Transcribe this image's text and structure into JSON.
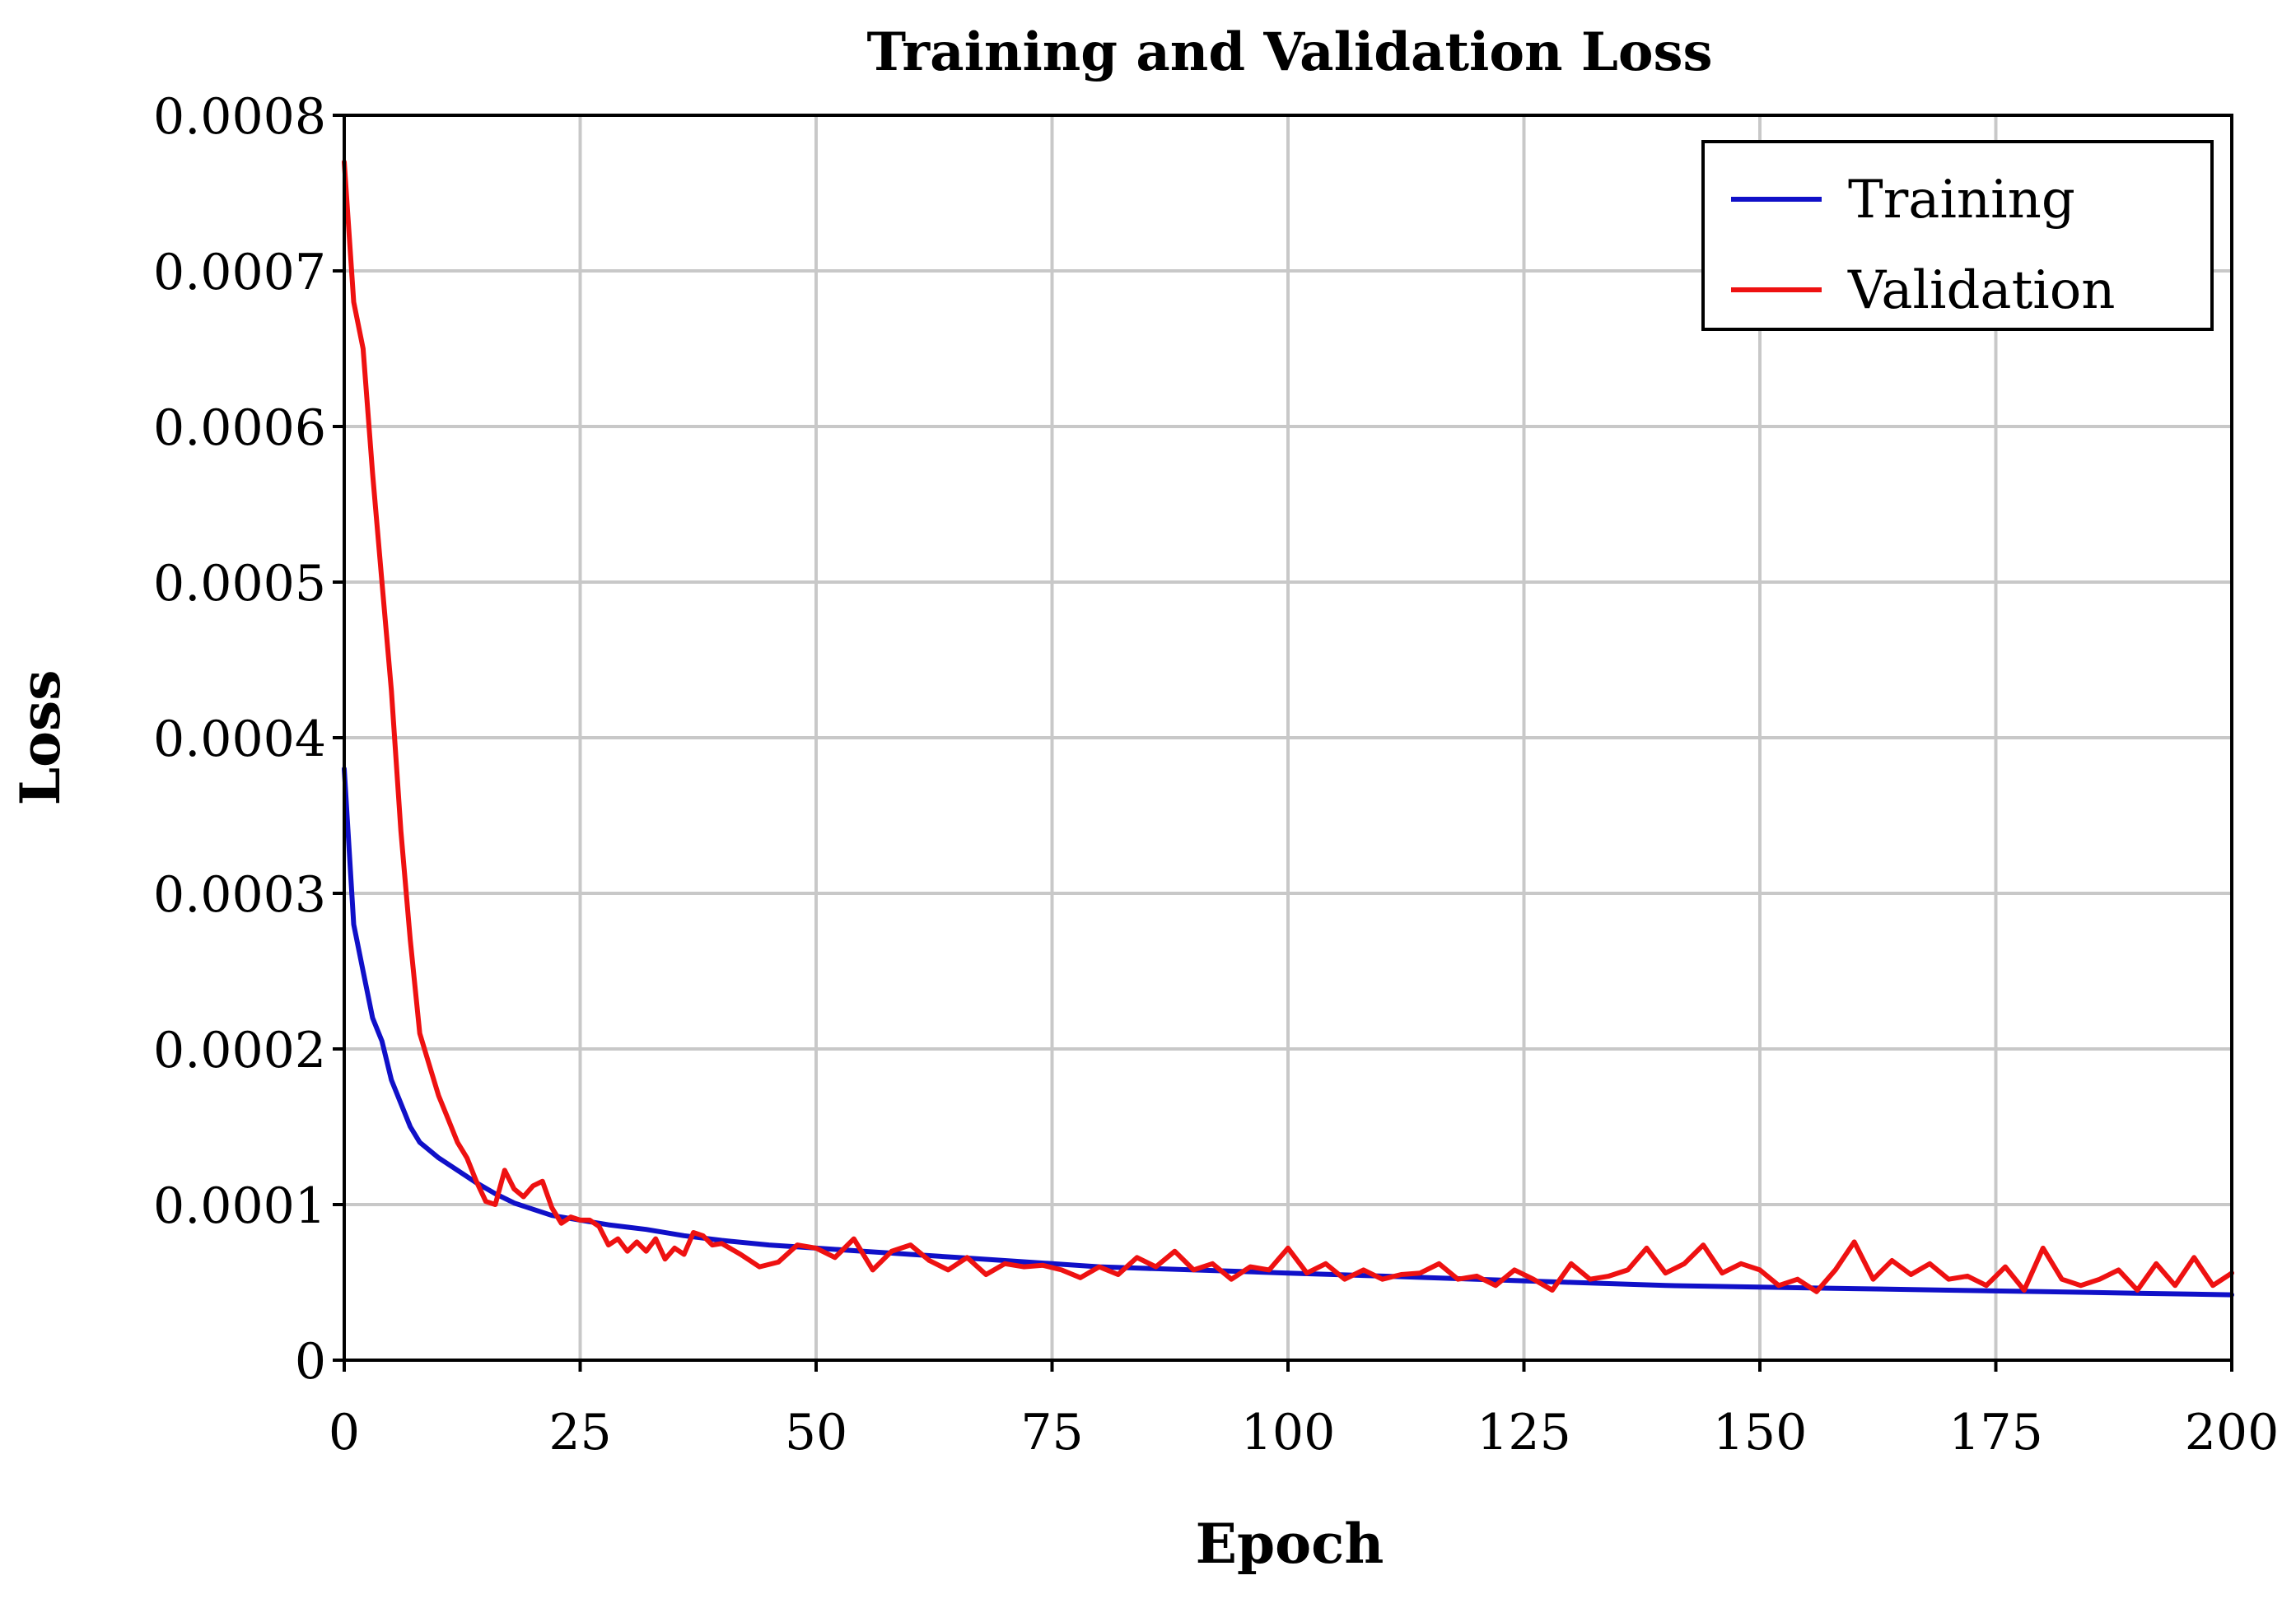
{
  "chart_data": {
    "type": "line",
    "title": "Training and Validation Loss",
    "xlabel": "Epoch",
    "ylabel": "Loss",
    "xlim": [
      0,
      200
    ],
    "ylim": [
      0,
      0.0008
    ],
    "xticks": [
      0,
      25,
      50,
      75,
      100,
      125,
      150,
      175,
      200
    ],
    "xtick_labels": [
      "0",
      "25",
      "50",
      "75",
      "100",
      "125",
      "150",
      "175",
      "200"
    ],
    "yticks": [
      0,
      0.0001,
      0.0002,
      0.0003,
      0.0004,
      0.0005,
      0.0006,
      0.0007,
      0.0008
    ],
    "ytick_labels": [
      "0",
      "0.0001",
      "0.0002",
      "0.0003",
      "0.0004",
      "0.0005",
      "0.0006",
      "0.0007",
      "0.0008"
    ],
    "grid": true,
    "legend_position": "top-right",
    "series": [
      {
        "name": "Training",
        "color": "#1010c8",
        "x": [
          0,
          1,
          2,
          3,
          4,
          5,
          6,
          7,
          8,
          9,
          10,
          12,
          14,
          16,
          18,
          20,
          22,
          25,
          28,
          32,
          36,
          40,
          45,
          50,
          55,
          60,
          65,
          70,
          75,
          80,
          85,
          90,
          95,
          100,
          110,
          120,
          130,
          140,
          150,
          160,
          170,
          180,
          190,
          200
        ],
        "y": [
          0.00038,
          0.00028,
          0.00025,
          0.00022,
          0.000205,
          0.00018,
          0.000165,
          0.00015,
          0.00014,
          0.000135,
          0.00013,
          0.000122,
          0.000114,
          0.000107,
          0.000101,
          9.7e-05,
          9.3e-05,
          9e-05,
          8.7e-05,
          8.4e-05,
          8e-05,
          7.7e-05,
          7.4e-05,
          7.2e-05,
          7e-05,
          6.8e-05,
          6.6e-05,
          6.4e-05,
          6.2e-05,
          6e-05,
          5.9e-05,
          5.8e-05,
          5.7e-05,
          5.6e-05,
          5.4e-05,
          5.2e-05,
          5e-05,
          4.8e-05,
          4.7e-05,
          4.6e-05,
          4.5e-05,
          4.4e-05,
          4.3e-05,
          4.2e-05
        ]
      },
      {
        "name": "Validation",
        "color": "#ee1111",
        "x": [
          0,
          1,
          2,
          3,
          4,
          5,
          6,
          7,
          8,
          9,
          10,
          11,
          12,
          13,
          14,
          15,
          16,
          17,
          18,
          19,
          20,
          21,
          22,
          23,
          24,
          25,
          26,
          27,
          28,
          29,
          30,
          31,
          32,
          33,
          34,
          35,
          36,
          37,
          38,
          39,
          40,
          42,
          44,
          46,
          48,
          50,
          52,
          54,
          56,
          58,
          60,
          62,
          64,
          66,
          68,
          70,
          72,
          74,
          76,
          78,
          80,
          82,
          84,
          86,
          88,
          90,
          92,
          94,
          96,
          98,
          100,
          102,
          104,
          106,
          108,
          110,
          112,
          114,
          116,
          118,
          120,
          122,
          124,
          126,
          128,
          130,
          132,
          134,
          136,
          138,
          140,
          142,
          144,
          146,
          148,
          150,
          152,
          154,
          156,
          158,
          160,
          162,
          164,
          166,
          168,
          170,
          172,
          174,
          176,
          178,
          180,
          182,
          184,
          186,
          188,
          190,
          192,
          194,
          196,
          198,
          200
        ],
        "y": [
          0.00077,
          0.00068,
          0.00065,
          0.00057,
          0.0005,
          0.00043,
          0.00034,
          0.00027,
          0.00021,
          0.00019,
          0.00017,
          0.000155,
          0.00014,
          0.00013,
          0.000115,
          0.000102,
          0.0001,
          0.000122,
          0.00011,
          0.000105,
          0.000112,
          0.000115,
          9.8e-05,
          8.8e-05,
          9.2e-05,
          9e-05,
          9e-05,
          8.6e-05,
          7.4e-05,
          7.8e-05,
          7e-05,
          7.6e-05,
          7e-05,
          7.8e-05,
          6.5e-05,
          7.2e-05,
          6.8e-05,
          8.2e-05,
          8e-05,
          7.4e-05,
          7.5e-05,
          6.8e-05,
          6e-05,
          6.3e-05,
          7.4e-05,
          7.2e-05,
          6.6e-05,
          7.8e-05,
          5.8e-05,
          7e-05,
          7.4e-05,
          6.4e-05,
          5.8e-05,
          6.6e-05,
          5.5e-05,
          6.2e-05,
          6e-05,
          6.1e-05,
          5.8e-05,
          5.3e-05,
          6e-05,
          5.5e-05,
          6.6e-05,
          6e-05,
          7e-05,
          5.8e-05,
          6.2e-05,
          5.2e-05,
          6e-05,
          5.8e-05,
          7.2e-05,
          5.6e-05,
          6.2e-05,
          5.2e-05,
          5.8e-05,
          5.2e-05,
          5.5e-05,
          5.6e-05,
          6.2e-05,
          5.2e-05,
          5.4e-05,
          4.8e-05,
          5.8e-05,
          5.2e-05,
          4.5e-05,
          6.2e-05,
          5.2e-05,
          5.4e-05,
          5.8e-05,
          7.2e-05,
          5.6e-05,
          6.2e-05,
          7.4e-05,
          5.6e-05,
          6.2e-05,
          5.8e-05,
          4.8e-05,
          5.2e-05,
          4.4e-05,
          5.8e-05,
          7.6e-05,
          5.2e-05,
          6.4e-05,
          5.5e-05,
          6.2e-05,
          5.2e-05,
          5.4e-05,
          4.8e-05,
          6e-05,
          4.5e-05,
          7.2e-05,
          5.2e-05,
          4.8e-05,
          5.2e-05,
          5.8e-05,
          4.5e-05,
          6.2e-05,
          4.8e-05,
          6.6e-05,
          4.8e-05,
          5.6e-05
        ]
      }
    ]
  }
}
